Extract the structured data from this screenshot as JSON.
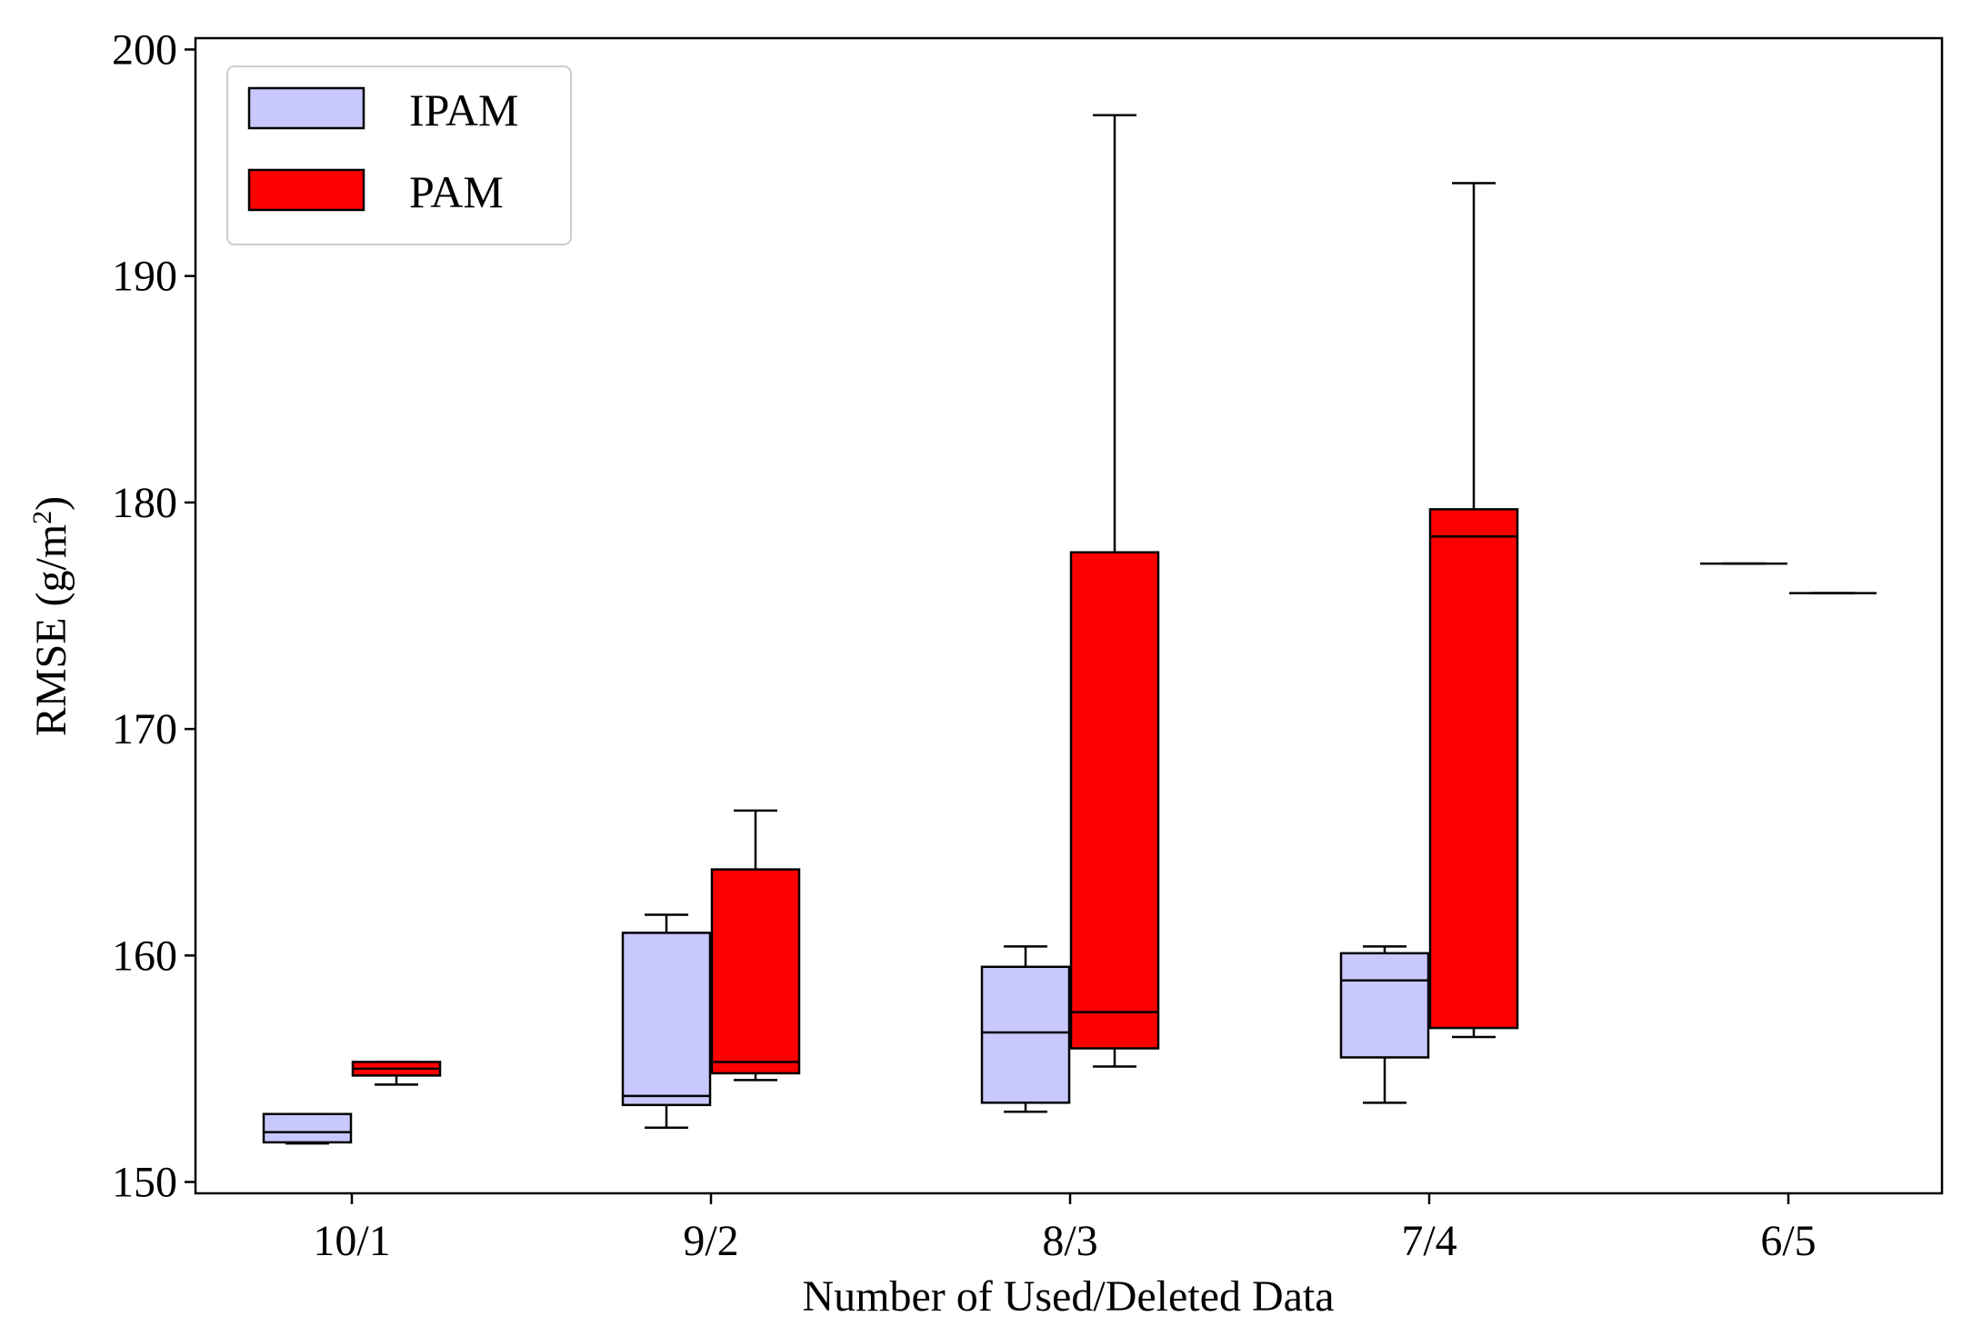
{
  "chart_data": {
    "type": "boxplot",
    "title": "",
    "xlabel": "Number of Used/Deleted Data",
    "ylabel_main": "RMSE (g/m",
    "ylabel_sup": "2",
    "ylabel_end": ")",
    "ylim": [
      149.5,
      200.5
    ],
    "yticks": [
      150,
      160,
      170,
      180,
      190,
      200
    ],
    "categories": [
      "10/1",
      "9/2",
      "8/3",
      "7/4",
      "6/5"
    ],
    "legend_position": "top-left",
    "series": [
      {
        "name": "IPAM",
        "color": "#c8c8ff",
        "boxes": [
          {
            "whislo": 151.7,
            "q1": 151.75,
            "med": 152.2,
            "q3": 153.0,
            "whishi": 153.0
          },
          {
            "whislo": 152.4,
            "q1": 153.4,
            "med": 153.8,
            "q3": 161.0,
            "whishi": 161.8
          },
          {
            "whislo": 153.1,
            "q1": 153.5,
            "med": 156.6,
            "q3": 159.5,
            "whishi": 160.4
          },
          {
            "whislo": 153.5,
            "q1": 155.5,
            "med": 158.9,
            "q3": 160.1,
            "whishi": 160.4
          },
          {
            "whislo": 177.3,
            "q1": 177.3,
            "med": 177.3,
            "q3": 177.3,
            "whishi": 177.3
          }
        ]
      },
      {
        "name": "PAM",
        "color": "#ff0000",
        "boxes": [
          {
            "whislo": 154.3,
            "q1": 154.7,
            "med": 155.0,
            "q3": 155.3,
            "whishi": 155.3
          },
          {
            "whislo": 154.5,
            "q1": 154.8,
            "med": 155.3,
            "q3": 163.8,
            "whishi": 166.4
          },
          {
            "whislo": 155.1,
            "q1": 155.9,
            "med": 157.5,
            "q3": 177.8,
            "whishi": 197.1
          },
          {
            "whislo": 156.4,
            "q1": 156.8,
            "med": 178.5,
            "q3": 179.7,
            "whishi": 194.1
          },
          {
            "whislo": 176.0,
            "q1": 176.0,
            "med": 176.0,
            "q3": 176.0,
            "whishi": 176.0
          }
        ]
      }
    ]
  }
}
